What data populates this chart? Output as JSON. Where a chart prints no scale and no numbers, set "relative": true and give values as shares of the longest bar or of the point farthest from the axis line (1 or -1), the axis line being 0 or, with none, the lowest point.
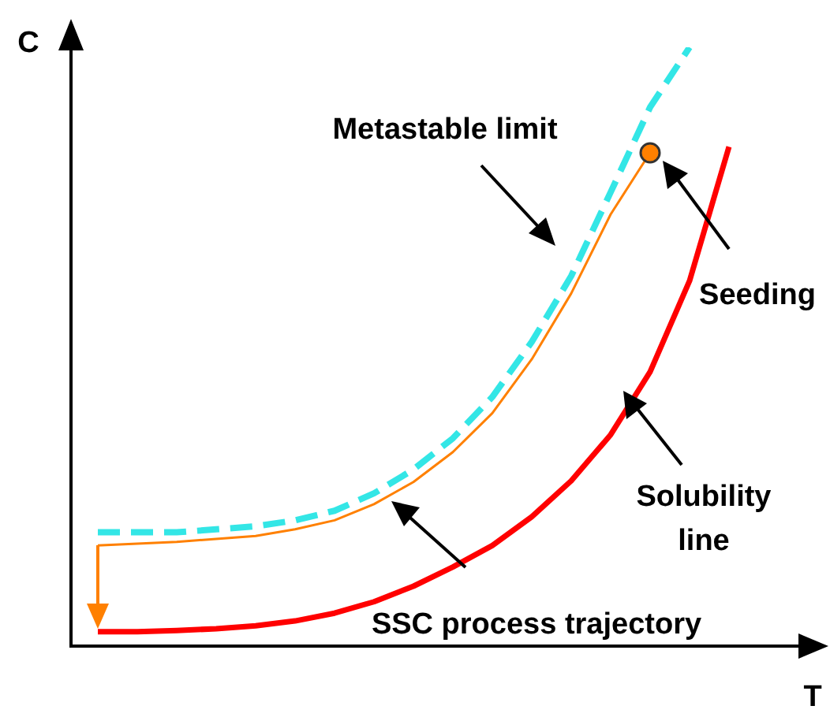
{
  "chart_data": {
    "type": "line",
    "relative": true,
    "xlabel": "T",
    "ylabel": "C",
    "legend": false,
    "categories": [
      null,
      null,
      null,
      null,
      null,
      null,
      null,
      null,
      null,
      null,
      null,
      null,
      null,
      null,
      null,
      null,
      null
    ],
    "series": [
      {
        "color": "#33e6e6",
        "line_style": "dashed",
        "values": [
          0.19,
          0.19,
          0.19,
          0.195,
          0.2,
          0.21,
          0.226,
          0.255,
          0.295,
          0.347,
          0.416,
          0.508,
          0.618,
          0.758,
          0.9,
          1,
          null
        ]
      },
      {
        "color": "#ff0000",
        "line_style": "solid",
        "values": [
          0.024,
          0.024,
          0.026,
          0.029,
          0.034,
          0.042,
          0.055,
          0.074,
          0.1,
          0.132,
          0.168,
          0.216,
          0.276,
          0.353,
          0.458,
          0.61,
          0.834
        ]
      },
      {
        "color": "#ff8000",
        "line_style": "solid",
        "values": [
          0.168,
          0.171,
          0.174,
          0.179,
          0.184,
          0.195,
          0.21,
          0.237,
          0.274,
          0.324,
          0.389,
          0.479,
          0.589,
          0.721,
          0.824,
          null,
          null
        ]
      }
    ],
    "annotations": [
      "Metastable limit",
      "Seeding",
      "Solubility line",
      "SSC process trajectory"
    ]
  }
}
